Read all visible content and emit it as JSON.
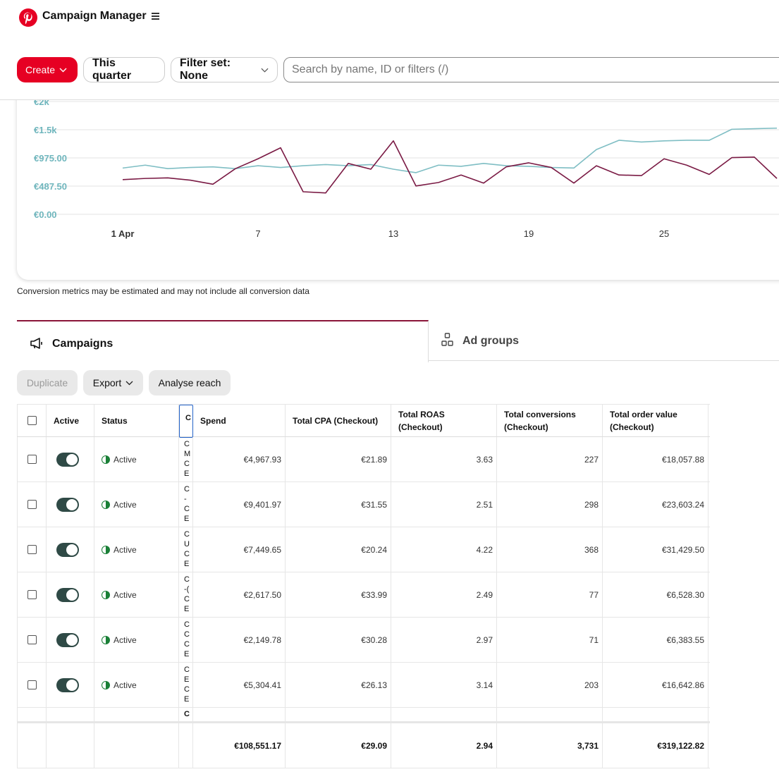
{
  "header": {
    "app_title": "Campaign Manager",
    "brand_color": "#e60023"
  },
  "toolbar": {
    "create_label": "Create",
    "date_range_label": "This quarter",
    "filter_set_label": "Filter set: None",
    "search_placeholder": "Search by name, ID or filters (/)"
  },
  "chart_data": {
    "type": "line",
    "y_ticks": [
      "€2k",
      "€1.5k",
      "€975.00",
      "€487.50",
      "€0.00"
    ],
    "ylim": [
      0,
      1950
    ],
    "x_ticks": [
      "1 Apr",
      "7",
      "13",
      "19",
      "25"
    ],
    "x": [
      1,
      2,
      3,
      4,
      5,
      6,
      7,
      8,
      9,
      10,
      11,
      12,
      13,
      14,
      15,
      16,
      17,
      18,
      19,
      20,
      21,
      22,
      23,
      24,
      25,
      26,
      27,
      28,
      29,
      30
    ],
    "series": [
      {
        "color": "#7fbec4",
        "values": [
          800,
          850,
          790,
          810,
          820,
          790,
          840,
          810,
          840,
          860,
          840,
          860,
          780,
          720,
          850,
          830,
          880,
          840,
          830,
          810,
          800,
          1120,
          1280,
          1250,
          1270,
          1280,
          1280,
          1470,
          1480,
          1490
        ]
      },
      {
        "color": "#7a1a44",
        "values": [
          600,
          620,
          630,
          590,
          520,
          790,
          960,
          1150,
          390,
          370,
          880,
          780,
          1270,
          490,
          550,
          680,
          540,
          820,
          890,
          810,
          540,
          840,
          680,
          670,
          960,
          850,
          690,
          980,
          990,
          620
        ]
      }
    ]
  },
  "disclaimer": "Conversion metrics may be estimated and may not include all conversion data",
  "tabs": {
    "campaigns_label": "Campaigns",
    "ad_groups_label": "Ad groups"
  },
  "actions": {
    "duplicate_label": "Duplicate",
    "export_label": "Export",
    "analyse_reach_label": "Analyse reach"
  },
  "table": {
    "columns": {
      "active": "Active",
      "status": "Status",
      "name": "C",
      "spend": "Spend",
      "cpa": "Total CPA (Checkout)",
      "roas": "Total ROAS (Checkout)",
      "conversions": "Total conversions (Checkout)",
      "order_value": "Total order value (Checkout)"
    },
    "rows": [
      {
        "status": "Active",
        "name_stub": "C\nM\nC\nE",
        "spend": "€4,967.93",
        "cpa": "€21.89",
        "roas": "3.63",
        "conversions": "227",
        "order_value": "€18,057.88"
      },
      {
        "status": "Active",
        "name_stub": "C\n-\nC\nE",
        "spend": "€9,401.97",
        "cpa": "€31.55",
        "roas": "2.51",
        "conversions": "298",
        "order_value": "€23,603.24"
      },
      {
        "status": "Active",
        "name_stub": "C\nU\nC\nE",
        "spend": "€7,449.65",
        "cpa": "€20.24",
        "roas": "4.22",
        "conversions": "368",
        "order_value": "€31,429.50"
      },
      {
        "status": "Active",
        "name_stub": "C\n-(\nC\nE",
        "spend": "€2,617.50",
        "cpa": "€33.99",
        "roas": "2.49",
        "conversions": "77",
        "order_value": "€6,528.30"
      },
      {
        "status": "Active",
        "name_stub": "C\nC\nC\nE",
        "spend": "€2,149.78",
        "cpa": "€30.28",
        "roas": "2.97",
        "conversions": "71",
        "order_value": "€6,383.55"
      },
      {
        "status": "Active",
        "name_stub": "C\nE\nC\nE",
        "spend": "€5,304.41",
        "cpa": "€26.13",
        "roas": "3.14",
        "conversions": "203",
        "order_value": "€16,642.86"
      }
    ],
    "partial_row_stub": "C",
    "totals": {
      "spend": "€108,551.17",
      "cpa": "€29.09",
      "roas": "2.94",
      "conversions": "3,731",
      "order_value": "€319,122.82"
    }
  }
}
